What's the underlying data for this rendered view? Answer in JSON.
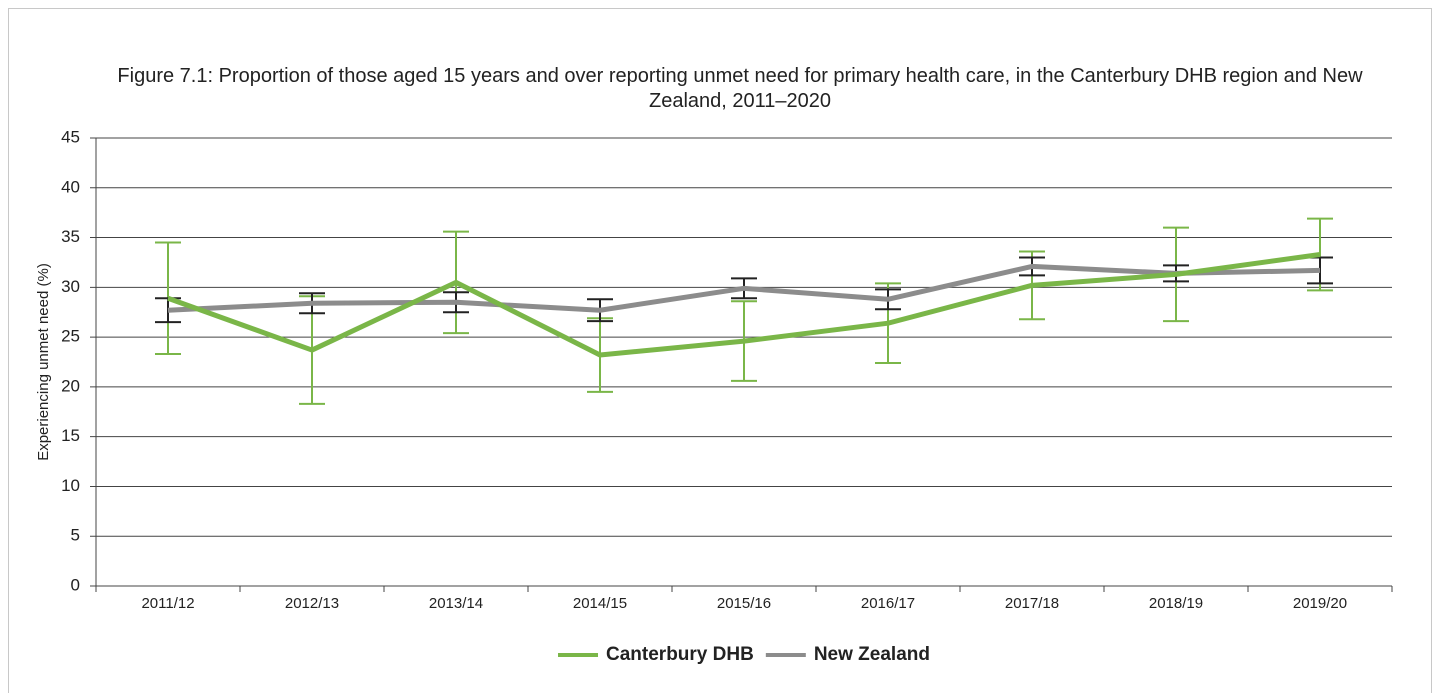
{
  "chart_data": {
    "type": "line",
    "title": "Figure 7.1: Proportion of those aged 15 years and over reporting unmet need for primary health care, in the Canterbury DHB region and New Zealand, 2011–2020",
    "y_label": "Experiencing unmet need (%)",
    "categories": [
      "2011/12",
      "2012/13",
      "2013/14",
      "2014/15",
      "2015/16",
      "2016/17",
      "2017/18",
      "2018/19",
      "2019/20"
    ],
    "series": [
      {
        "name": "Canterbury DHB",
        "color": "#7ab648",
        "error_color": "#7ab648",
        "values": [
          28.9,
          23.7,
          30.5,
          23.2,
          24.6,
          26.4,
          30.2,
          31.3,
          33.3
        ],
        "errors": [
          5.6,
          5.4,
          5.1,
          3.7,
          4.0,
          4.0,
          3.4,
          4.7,
          3.6
        ]
      },
      {
        "name": "New Zealand",
        "color": "#8c8c8c",
        "error_color": "#222222",
        "values": [
          27.7,
          28.4,
          28.5,
          27.7,
          29.9,
          28.8,
          32.1,
          31.4,
          31.7
        ],
        "errors": [
          1.2,
          1.0,
          1.0,
          1.1,
          1.0,
          1.0,
          0.9,
          0.8,
          1.3
        ]
      }
    ],
    "ylim": [
      0,
      45
    ],
    "yticks": [
      0,
      5,
      10,
      15,
      20,
      25,
      30,
      35,
      40,
      45
    ],
    "grid": true,
    "legend": "bottom"
  }
}
